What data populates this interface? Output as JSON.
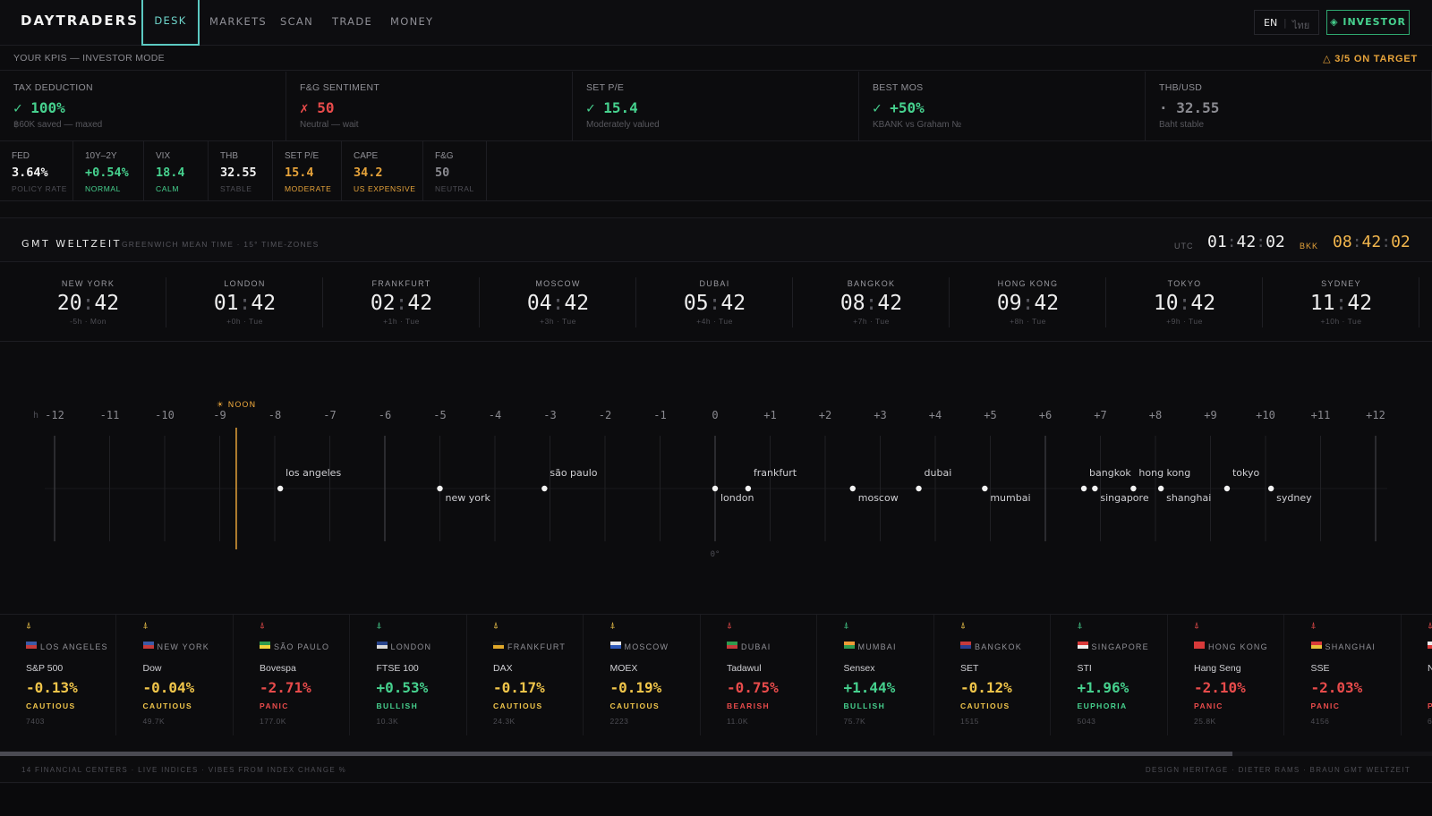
{
  "nav": {
    "brand": "DAYTRADERS",
    "tabs": [
      "DESK",
      "MARKETS",
      "SCAN",
      "TRADE",
      "MONEY"
    ],
    "active_tab": "DESK",
    "lang_en": "EN",
    "lang_th": "ไทย",
    "investor_label": "◈ INVESTOR"
  },
  "kpi_header": {
    "label": "YOUR KPIS — INVESTOR MODE",
    "target": "△ 3/5 ON TARGET"
  },
  "kpis": [
    {
      "title": "TAX DEDUCTION",
      "value": "✓ 100%",
      "sub": "฿60K saved — maxed",
      "status": "green"
    },
    {
      "title": "F&G SENTIMENT",
      "value": "✗ 50",
      "sub": "Neutral — wait",
      "status": "red"
    },
    {
      "title": "SET P/E",
      "value": "✓ 15.4",
      "sub": "Moderately valued",
      "status": "green"
    },
    {
      "title": "BEST MOS",
      "value": "✓ +50%",
      "sub": "KBANK vs Graham №",
      "status": "green"
    },
    {
      "title": "THB/USD",
      "value": "· 32.55",
      "sub": "Baht stable",
      "status": "muted"
    }
  ],
  "macro": [
    {
      "title": "FED",
      "value": "3.64%",
      "sub": "POLICY RATE",
      "status": "white",
      "sub_status": "dim"
    },
    {
      "title": "10Y–2Y",
      "value": "+0.54%",
      "sub": "NORMAL",
      "status": "green",
      "sub_status": "green"
    },
    {
      "title": "VIX",
      "value": "18.4",
      "sub": "CALM",
      "status": "green",
      "sub_status": "green"
    },
    {
      "title": "THB",
      "value": "32.55",
      "sub": "STABLE",
      "status": "white",
      "sub_status": "dim"
    },
    {
      "title": "SET P/E",
      "value": "15.4",
      "sub": "MODERATE",
      "status": "amber",
      "sub_status": "amber"
    },
    {
      "title": "CAPE",
      "value": "34.2",
      "sub": "US EXPENSIVE",
      "status": "amber",
      "sub_status": "amber"
    },
    {
      "title": "F&G",
      "value": "50",
      "sub": "NEUTRAL",
      "status": "muted",
      "sub_status": "dim"
    }
  ],
  "world_clock": {
    "title": "GMT WELTZEIT",
    "subtitle": "GREENWICH MEAN TIME · 15° TIME-ZONES",
    "utc_label": "UTC",
    "utc_h": "01",
    "utc_m": "42",
    "utc_s": "02",
    "bkk_label": "BKK",
    "bkk_h": "08",
    "bkk_m": "42",
    "bkk_s": "02",
    "cities": [
      {
        "city": "NEW YORK",
        "h": "20",
        "m": "42",
        "offset": "-5h · Mon"
      },
      {
        "city": "LONDON",
        "h": "01",
        "m": "42",
        "offset": "+0h · Tue"
      },
      {
        "city": "FRANKFURT",
        "h": "02",
        "m": "42",
        "offset": "+1h · Tue"
      },
      {
        "city": "MOSCOW",
        "h": "04",
        "m": "42",
        "offset": "+3h · Tue"
      },
      {
        "city": "DUBAI",
        "h": "05",
        "m": "42",
        "offset": "+4h · Tue"
      },
      {
        "city": "BANGKOK",
        "h": "08",
        "m": "42",
        "offset": "+7h · Tue"
      },
      {
        "city": "HONG KONG",
        "h": "09",
        "m": "42",
        "offset": "+8h · Tue"
      },
      {
        "city": "TOKYO",
        "h": "10",
        "m": "42",
        "offset": "+9h · Tue"
      },
      {
        "city": "SYDNEY",
        "h": "11",
        "m": "42",
        "offset": "+10h · Tue"
      }
    ]
  },
  "zone_chart": {
    "hour_prefix": "h",
    "hours": [
      "-12",
      "-11",
      "-10",
      "-9",
      "-8",
      "-7",
      "-6",
      "-5",
      "-4",
      "-3",
      "-2",
      "-1",
      "0",
      "+1",
      "+2",
      "+3",
      "+4",
      "+5",
      "+6",
      "+7",
      "+8",
      "+9",
      "+10",
      "+11",
      "+12"
    ],
    "noon_label": "☀ NOON",
    "noon_offset": -8.7,
    "meridian_label": "0°",
    "cities": [
      {
        "name": "los angeles",
        "offset": -7.9,
        "label": "above"
      },
      {
        "name": "new york",
        "offset": -5.0,
        "label": "below"
      },
      {
        "name": "são paulo",
        "offset": -3.1,
        "label": "above"
      },
      {
        "name": "london",
        "offset": 0.0,
        "label": "below"
      },
      {
        "name": "frankfurt",
        "offset": 0.6,
        "label": "above"
      },
      {
        "name": "moscow",
        "offset": 2.5,
        "label": "below"
      },
      {
        "name": "dubai",
        "offset": 3.7,
        "label": "above"
      },
      {
        "name": "mumbai",
        "offset": 4.9,
        "label": "below"
      },
      {
        "name": "bangkok",
        "offset": 6.7,
        "label": "above"
      },
      {
        "name": "singapore",
        "offset": 6.9,
        "label": "below"
      },
      {
        "name": "hong kong",
        "offset": 7.6,
        "label": "above"
      },
      {
        "name": "shanghai",
        "offset": 8.1,
        "label": "below"
      },
      {
        "name": "tokyo",
        "offset": 9.3,
        "label": "above"
      },
      {
        "name": "sydney",
        "offset": 10.1,
        "label": "below"
      }
    ]
  },
  "markets": [
    {
      "city": "LOS ANGELES",
      "flag": "us",
      "index": "S&P 500",
      "change": "-0.13%",
      "mood": "CAUTIOUS",
      "volume": "7403",
      "tone": "yellow"
    },
    {
      "city": "NEW YORK",
      "flag": "us",
      "index": "Dow",
      "change": "-0.04%",
      "mood": "CAUTIOUS",
      "volume": "49.7K",
      "tone": "yellow"
    },
    {
      "city": "SÃO PAULO",
      "flag": "br",
      "index": "Bovespa",
      "change": "-2.71%",
      "mood": "PANIC",
      "volume": "177.0K",
      "tone": "red"
    },
    {
      "city": "LONDON",
      "flag": "gb",
      "index": "FTSE 100",
      "change": "+0.53%",
      "mood": "BULLISH",
      "volume": "10.3K",
      "tone": "green"
    },
    {
      "city": "FRANKFURT",
      "flag": "de",
      "index": "DAX",
      "change": "-0.17%",
      "mood": "CAUTIOUS",
      "volume": "24.3K",
      "tone": "yellow"
    },
    {
      "city": "MOSCOW",
      "flag": "ru",
      "index": "MOEX",
      "change": "-0.19%",
      "mood": "CAUTIOUS",
      "volume": "2223",
      "tone": "yellow"
    },
    {
      "city": "DUBAI",
      "flag": "ae",
      "index": "Tadawul",
      "change": "-0.75%",
      "mood": "BEARISH",
      "volume": "11.0K",
      "tone": "red"
    },
    {
      "city": "MUMBAI",
      "flag": "in",
      "index": "Sensex",
      "change": "+1.44%",
      "mood": "BULLISH",
      "volume": "75.7K",
      "tone": "green"
    },
    {
      "city": "BANGKOK",
      "flag": "th",
      "index": "SET",
      "change": "-0.12%",
      "mood": "CAUTIOUS",
      "volume": "1515",
      "tone": "yellow"
    },
    {
      "city": "SINGAPORE",
      "flag": "sg",
      "index": "STI",
      "change": "+1.96%",
      "mood": "EUPHORIA",
      "volume": "5043",
      "tone": "green"
    },
    {
      "city": "HONG KONG",
      "flag": "hk",
      "index": "Hang Seng",
      "change": "-2.10%",
      "mood": "PANIC",
      "volume": "25.8K",
      "tone": "red"
    },
    {
      "city": "SHANGHAI",
      "flag": "cn",
      "index": "SSE",
      "change": "-2.03%",
      "mood": "PANIC",
      "volume": "4156",
      "tone": "red"
    },
    {
      "city": "",
      "flag": "jp",
      "index": "N",
      "change": "",
      "mood": "P",
      "volume": "6",
      "tone": "red"
    }
  ],
  "footer": {
    "left": "14 FINANCIAL CENTERS · LIVE INDICES · VIBES FROM INDEX CHANGE %",
    "right": "DESIGN HERITAGE · DIETER RAMS · BRAUN GMT WELTZEIT"
  },
  "colors": {
    "green": "#46d18e",
    "red": "#e84b4b",
    "amber": "#e6a33a",
    "yellow": "#f0c54a",
    "teal": "#5cc9c2"
  }
}
